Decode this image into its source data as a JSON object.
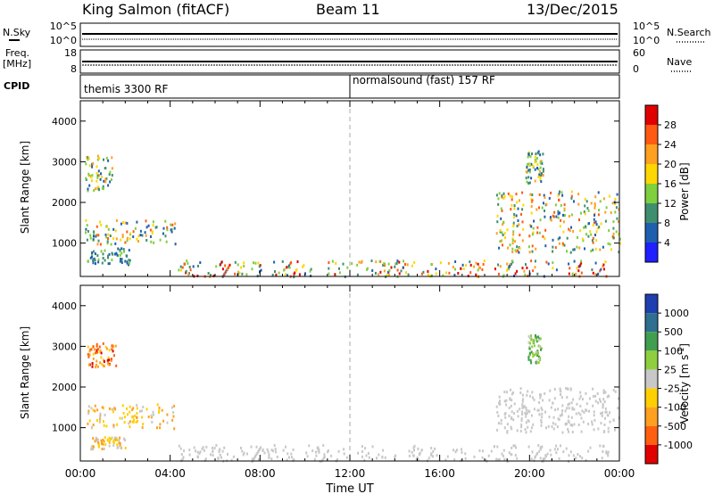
{
  "header": {
    "station": "King Salmon (fitACF)",
    "beam": "Beam 11",
    "date": "13/Dec/2015"
  },
  "strips": {
    "nsky": {
      "label": "N.Sky",
      "right_label": "N.Search",
      "ticks_left": [
        "10^5",
        "10^0"
      ],
      "ticks_right": [
        "10^5",
        "10^0"
      ]
    },
    "freq": {
      "label_line1": "Freq.",
      "label_line2": "[MHz]",
      "right_label": "Nave",
      "ticks_left": [
        "18",
        "8"
      ],
      "ticks_right": [
        "60",
        "0"
      ]
    },
    "cpid": {
      "label": "CPID",
      "segments": [
        {
          "text": "themis 3300 RF",
          "start_hour": 0
        },
        {
          "text": "normalsound (fast) 157 RF",
          "start_hour": 12
        }
      ]
    }
  },
  "axes": {
    "xlabel": "Time UT",
    "xticks": [
      "00:00",
      "04:00",
      "08:00",
      "12:00",
      "16:00",
      "20:00",
      "00:00"
    ],
    "ylabel": "Slant Range [km]",
    "yticks": [
      "1000",
      "2000",
      "3000",
      "4000"
    ]
  },
  "colorbars": {
    "power": {
      "label": "Power [dB]",
      "ticks": [
        "4",
        "8",
        "12",
        "16",
        "20",
        "24",
        "28"
      ],
      "colors": [
        "#1f1fff",
        "#1f5fb0",
        "#3f8f6f",
        "#7fcf3f",
        "#ffd700",
        "#ffa020",
        "#ff5a14",
        "#e00000"
      ]
    },
    "velocity": {
      "label_main": "Velocity [m s",
      "label_sup": "-1",
      "label_close": "]",
      "ticks": [
        "1000",
        "500",
        "100",
        "25",
        "-25",
        "-100",
        "-500",
        "-1000"
      ],
      "colors": [
        "#1f3fb0",
        "#2f6f8f",
        "#3f9f4f",
        "#8fcf3f",
        "#c8c8c8",
        "#ffd000",
        "#ffa020",
        "#ff6010",
        "#e00000"
      ]
    }
  },
  "chart_data": [
    {
      "type": "heatmap",
      "title": "Power",
      "xlabel": "Time UT",
      "ylabel": "Slant Range [km]",
      "xlim": [
        0,
        24
      ],
      "ylim": [
        180,
        4500
      ],
      "x_unit": "hours UT",
      "y_unit": "km",
      "colorbar": {
        "label": "Power [dB]",
        "range": [
          0,
          30
        ]
      },
      "regions": [
        {
          "t_range": [
            0.2,
            1.4
          ],
          "r_range": [
            2300,
            3200
          ],
          "value_range": [
            4,
            22
          ]
        },
        {
          "t_range": [
            0.2,
            4.2
          ],
          "r_range": [
            1000,
            1600
          ],
          "value_range": [
            4,
            26
          ]
        },
        {
          "t_range": [
            0.3,
            2.2
          ],
          "r_range": [
            500,
            900
          ],
          "value_range": [
            4,
            14
          ]
        },
        {
          "t_range": [
            4.3,
            23.5
          ],
          "r_range": [
            200,
            600
          ],
          "value_range": [
            4,
            30
          ]
        },
        {
          "t_range": [
            18.5,
            24.0
          ],
          "r_range": [
            800,
            2300
          ],
          "value_range": [
            4,
            26
          ]
        },
        {
          "t_range": [
            19.8,
            20.6
          ],
          "r_range": [
            2500,
            3300
          ],
          "value_range": [
            4,
            20
          ]
        }
      ]
    },
    {
      "type": "heatmap",
      "title": "Velocity",
      "xlabel": "Time UT",
      "ylabel": "Slant Range [km]",
      "xlim": [
        0,
        24
      ],
      "ylim": [
        180,
        4500
      ],
      "x_unit": "hours UT",
      "y_unit": "km",
      "colorbar": {
        "label": "Velocity [m s-1]",
        "range": [
          -1000,
          1000
        ]
      },
      "regions": [
        {
          "t_range": [
            0.3,
            1.6
          ],
          "r_range": [
            2500,
            3100
          ],
          "value_range": [
            -1000,
            -100
          ]
        },
        {
          "t_range": [
            0.2,
            4.2
          ],
          "r_range": [
            1000,
            1600
          ],
          "value_range": [
            -500,
            25
          ]
        },
        {
          "t_range": [
            0.4,
            2.0
          ],
          "r_range": [
            500,
            800
          ],
          "value_range": [
            -500,
            100
          ]
        },
        {
          "t_range": [
            4.3,
            23.5
          ],
          "r_range": [
            200,
            600
          ],
          "value_range": [
            -100,
            100
          ]
        },
        {
          "t_range": [
            18.5,
            24.0
          ],
          "r_range": [
            900,
            2000
          ],
          "value_range": [
            -25,
            25
          ]
        },
        {
          "t_range": [
            19.9,
            20.5
          ],
          "r_range": [
            2600,
            3300
          ],
          "value_range": [
            25,
            500
          ]
        }
      ]
    }
  ]
}
